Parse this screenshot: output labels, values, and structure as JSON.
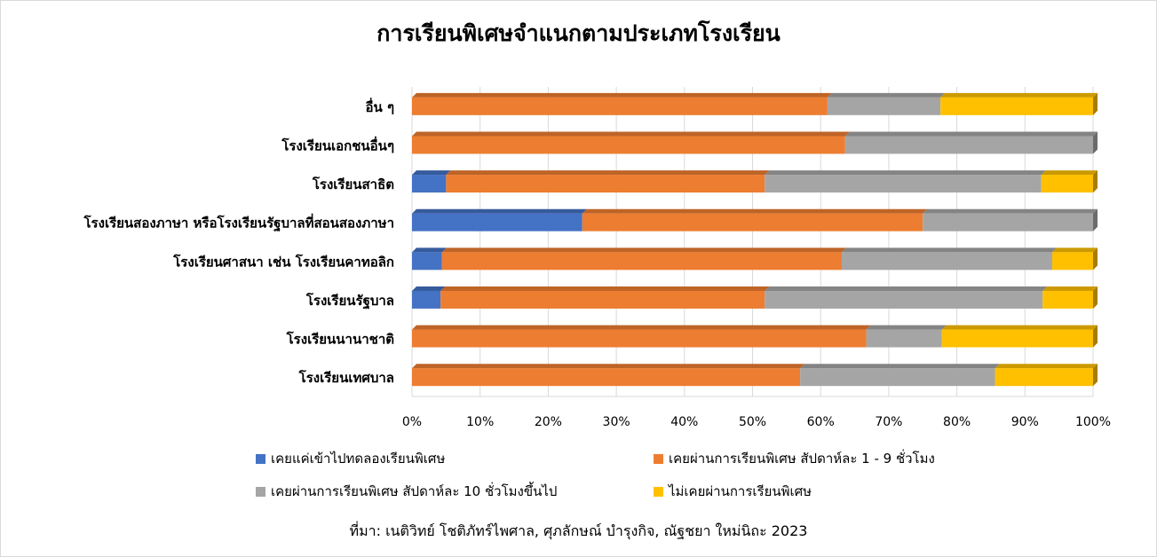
{
  "chart_data": {
    "type": "bar",
    "orientation": "horizontal",
    "stacked": "percent",
    "title": "การเรียนพิเศษจำแนกตามประเภทโรงเรียน",
    "categories": [
      "อื่น ๆ",
      "โรงเรียนเอกชนอื่นๆ",
      "โรงเรียนสาธิต",
      "โรงเรียนสองภาษา หรือโรงเรียนรัฐบาลที่สอนสองภาษา",
      "โรงเรียนศาสนา เช่น โรงเรียนคาทอลิก",
      "โรงเรียนรัฐบาล",
      "โรงเรียนนานาชาติ",
      "โรงเรียนเทศบาล"
    ],
    "series": [
      {
        "name": "เคยแค่เข้าไปทดลองเรียนพิเศษ",
        "color": "#4472C4",
        "values": [
          0,
          0,
          5,
          25,
          4.4,
          4.2,
          0,
          0
        ]
      },
      {
        "name": "เคยผ่านการเรียนพิเศษ สัปดาห์ละ 1 - 9 ชั่วโมง",
        "color": "#ED7D31",
        "values": [
          61,
          63.6,
          46.8,
          50,
          58.7,
          47.6,
          66.7,
          57
        ]
      },
      {
        "name": "เคยผ่านการเรียนพิเศษ สัปดาห์ละ 10 ชั่วโมงขึ้นไป",
        "color": "#A5A5A5",
        "values": [
          16.6,
          36.4,
          40.6,
          25,
          30.9,
          40.8,
          11.1,
          28.6
        ]
      },
      {
        "name": "ไม่เคยผ่านการเรียนพิเศษ",
        "color": "#FFC000",
        "values": [
          22.4,
          0,
          7.6,
          0,
          6,
          7.4,
          22.2,
          14.4
        ]
      }
    ],
    "xlim": [
      0,
      100
    ],
    "xticks": [
      "0%",
      "10%",
      "20%",
      "30%",
      "40%",
      "50%",
      "60%",
      "70%",
      "80%",
      "90%",
      "100%"
    ],
    "grid": true,
    "legend_position": "bottom"
  },
  "source": "ที่มา: เนติวิทย์ โชติภัทร์ไพศาล, ศุภลักษณ์ บำรุงกิจ, ณัฐชยา ใหม่นิถะ 2023"
}
